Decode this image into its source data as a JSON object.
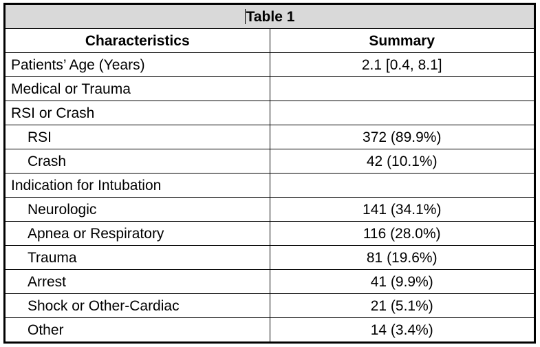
{
  "table": {
    "title": "Table 1",
    "headers": [
      "Characteristics",
      "Summary"
    ],
    "rows": [
      {
        "characteristic": "Patients’ Age (Years)",
        "summary": "2.1 [0.4, 8.1]",
        "indent": false
      },
      {
        "characteristic": "Medical or Trauma",
        "summary": "",
        "indent": false
      },
      {
        "characteristic": "RSI or Crash",
        "summary": "",
        "indent": false
      },
      {
        "characteristic": "RSI",
        "summary": "372 (89.9%)",
        "indent": true
      },
      {
        "characteristic": "Crash",
        "summary": "42 (10.1%)",
        "indent": true
      },
      {
        "characteristic": "Indication for Intubation",
        "summary": "",
        "indent": false
      },
      {
        "characteristic": "Neurologic",
        "summary": "141 (34.1%)",
        "indent": true
      },
      {
        "characteristic": "Apnea or Respiratory",
        "summary": "116 (28.0%)",
        "indent": true
      },
      {
        "characteristic": "Trauma",
        "summary": "81 (19.6%)",
        "indent": true
      },
      {
        "characteristic": "Arrest",
        "summary": "41 (9.9%)",
        "indent": true
      },
      {
        "characteristic": "Shock or Other-Cardiac",
        "summary": "21 (5.1%)",
        "indent": true
      },
      {
        "characteristic": "Other",
        "summary": "14 (3.4%)",
        "indent": true
      }
    ]
  },
  "colors": {
    "title_background": "#d9d9d9",
    "border": "#000000",
    "text": "#000000"
  }
}
